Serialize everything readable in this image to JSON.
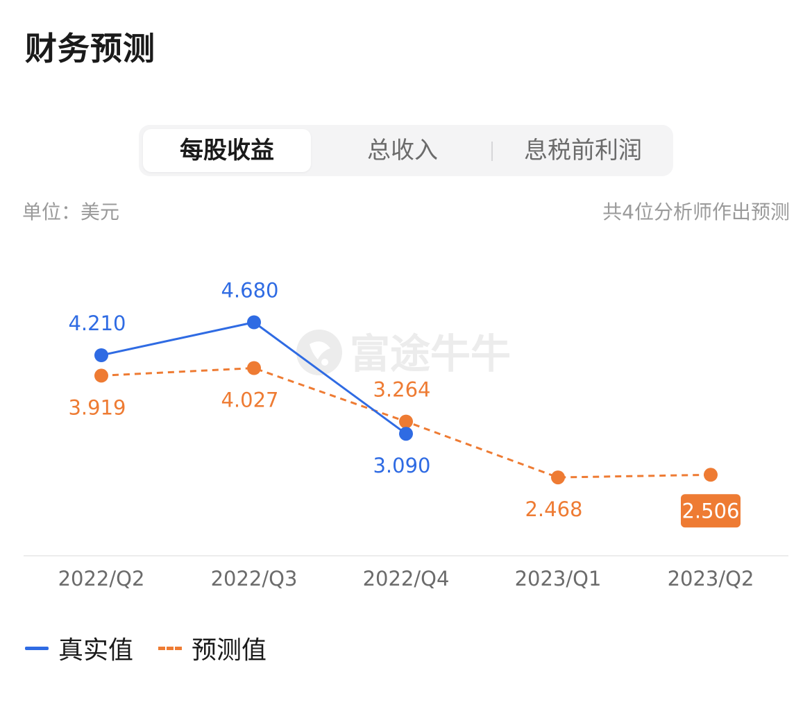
{
  "title": "财务预测",
  "tabs": [
    {
      "label": "每股收益",
      "active": true
    },
    {
      "label": "总收入",
      "active": false
    },
    {
      "label": "息税前利润",
      "active": false
    }
  ],
  "unit_label": "单位：美元",
  "analyst_count_label": "共4位分析师作出预测",
  "watermark": "富途牛牛",
  "legend": {
    "actual_label": "真实值",
    "forecast_label": "预测值"
  },
  "colors": {
    "actual": "#2f6be3",
    "forecast": "#ee7b33",
    "axis": "#ececec",
    "tick": "#6b6b6b",
    "watermark": "#ececec"
  },
  "chart_data": {
    "type": "line",
    "categories": [
      "2022/Q2",
      "2022/Q3",
      "2022/Q4",
      "2023/Q1",
      "2023/Q2"
    ],
    "series": [
      {
        "name": "真实值",
        "values": [
          4.21,
          4.68,
          3.09,
          null,
          null
        ],
        "labels": [
          "4.210",
          "4.680",
          "3.090",
          "",
          ""
        ],
        "style": "solid"
      },
      {
        "name": "预测值",
        "values": [
          3.919,
          4.027,
          3.264,
          2.468,
          2.506
        ],
        "labels": [
          "3.919",
          "4.027",
          "3.264",
          "2.468",
          "2.506"
        ],
        "style": "dashed",
        "highlight_last": true
      }
    ],
    "xlabel": "",
    "ylabel": "",
    "grid": false,
    "legend_position": "bottom-left"
  }
}
